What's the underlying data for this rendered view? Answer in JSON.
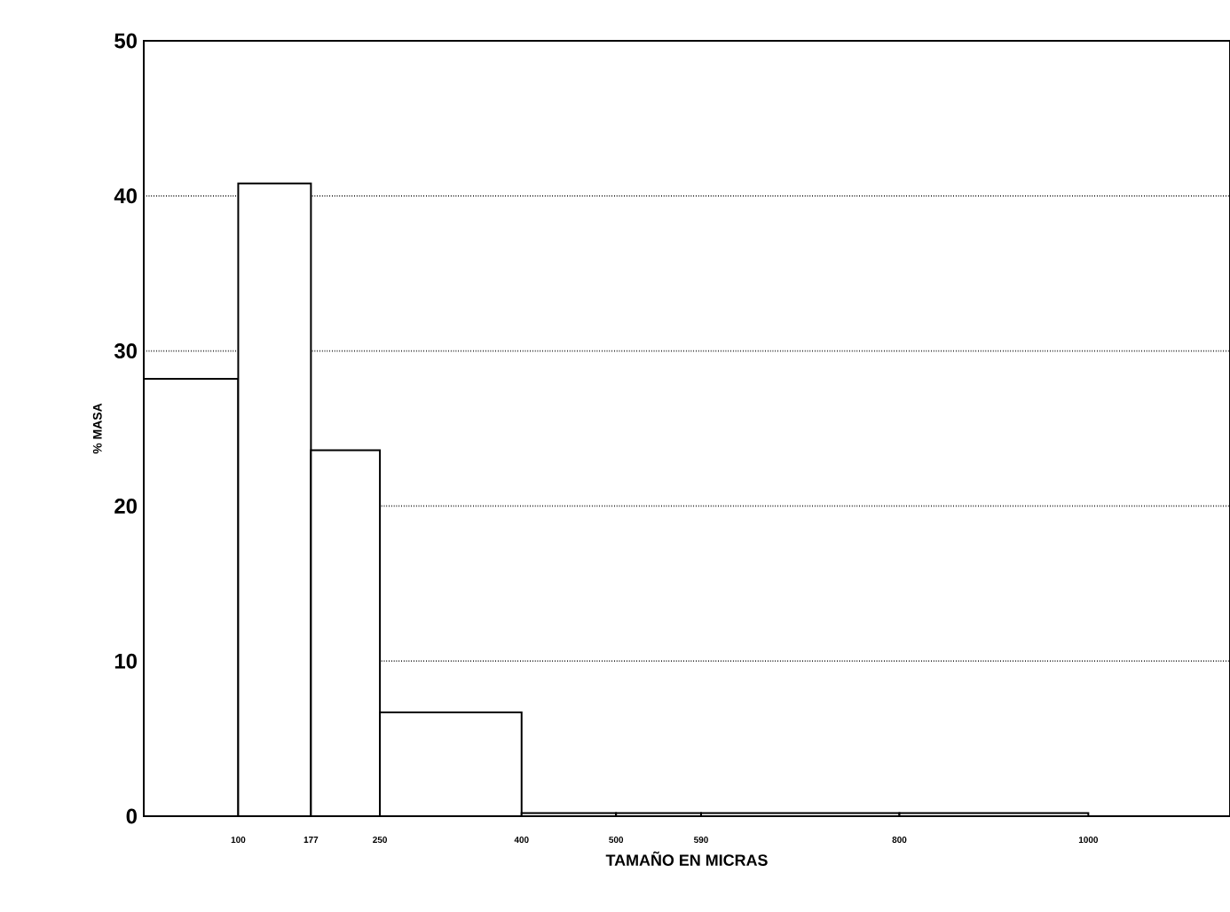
{
  "chart_data": {
    "type": "histogram",
    "bins": [
      0,
      100,
      177,
      250,
      400,
      500,
      590,
      800,
      1000
    ],
    "values": [
      28.2,
      40.8,
      23.6,
      6.7,
      0.2,
      0.2,
      0.2,
      0.2
    ],
    "color": "#ffffff",
    "xlabel": "TAMAÑO EN MICRAS",
    "ylabel": "% MASA",
    "xlim": [
      0,
      1150
    ],
    "xticks": [
      100,
      177,
      250,
      400,
      500,
      590,
      800,
      1000
    ],
    "ylim": [
      0,
      50
    ],
    "yticks": [
      0,
      10,
      20,
      30,
      40,
      50
    ],
    "grid": "y"
  }
}
